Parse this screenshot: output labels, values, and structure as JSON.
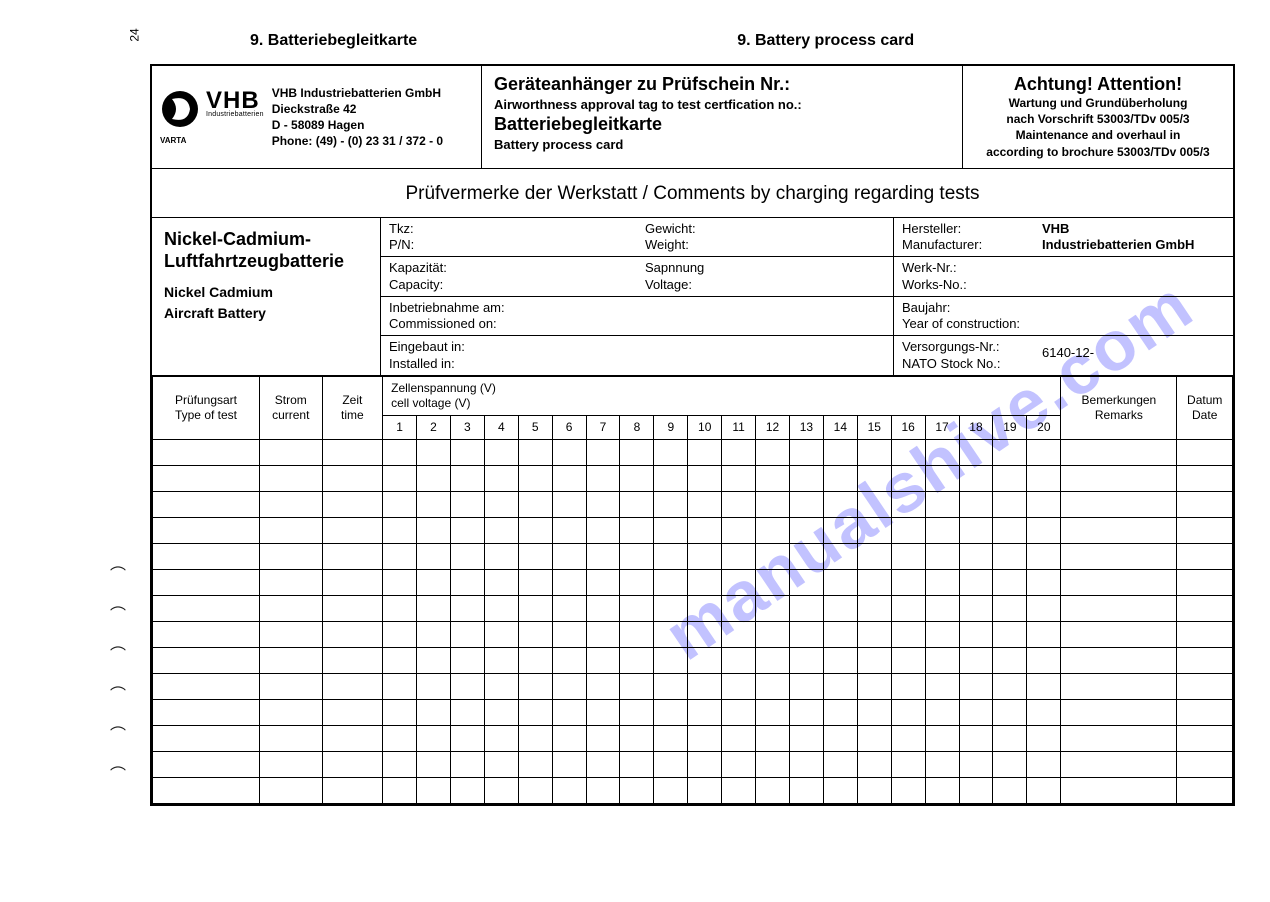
{
  "page_number": "24",
  "top_left_title": "9. Batteriebegleitkarte",
  "top_right_title": "9. Battery process card",
  "watermark": "manualshive.com",
  "header": {
    "logo_brand": "VHB",
    "logo_sub": "Industriebatterien",
    "varta": "VARTA",
    "company": "VHB Industriebatterien GmbH",
    "street": "Dieckstraße 42",
    "city": "D - 58089 Hagen",
    "phone": "Phone: (49) - (0) 23 31 / 372 - 0",
    "mid_l1": "Geräteanhänger zu Prüfschein Nr.:",
    "mid_l2": "Airworthness approval tag to test certfication no.:",
    "mid_l3": "Batteriebegleitkarte",
    "mid_l4": "Battery process card",
    "attention": "Achtung! Attention!",
    "att_l1": "Wartung und Grundüberholung",
    "att_l2": "nach Vorschrift 53003/TDv 005/3",
    "att_l3": "Maintenance and overhaul in",
    "att_l4": "according to brochure 53003/TDv 005/3"
  },
  "comments_title": "Prüfvermerke der Werkstatt / Comments by charging regarding tests",
  "meta": {
    "left_big_l1": "Nickel-Cadmium-",
    "left_big_l2": "Luftfahrtzeugbatterie",
    "left_sm_l1": "Nickel Cadmium",
    "left_sm_l2": "Aircraft Battery",
    "tkz": "Tkz:",
    "pn": "P/N:",
    "gewicht": "Gewicht:",
    "weight": "Weight:",
    "kapazitat": "Kapazität:",
    "capacity": "Capacity:",
    "spannung": "Sapnnung",
    "voltage": "Voltage:",
    "inbetrieb": "Inbetriebnahme am:",
    "commissioned": "Commissioned on:",
    "eingebaut": "Eingebaut in:",
    "installed": "Installed in:",
    "hersteller": "Hersteller:",
    "manufacturer": "Manufacturer:",
    "hersteller_val_l1": "VHB",
    "hersteller_val_l2": "Industriebatterien GmbH",
    "werknr": "Werk-Nr.:",
    "worksno": "Works-No.:",
    "baujahr": "Baujahr:",
    "yoc": "Year of construction:",
    "versorg": "Versorgungs-Nr.:",
    "nato": "NATO Stock No.:",
    "nato_val": "6140-12-"
  },
  "table": {
    "col_type_l1": "Prüfungsart",
    "col_type_l2": "Type of test",
    "col_cur_l1": "Strom",
    "col_cur_l2": "current",
    "col_time_l1": "Zeit",
    "col_time_l2": "time",
    "cell_voltage_l1": "Zellenspannung (V)",
    "cell_voltage_l2": "cell voltage (V)",
    "col_rem_l1": "Bemerkungen",
    "col_rem_l2": "Remarks",
    "col_date_l1": "Datum",
    "col_date_l2": "Date",
    "cell_nums": [
      "1",
      "2",
      "3",
      "4",
      "5",
      "6",
      "7",
      "8",
      "9",
      "10",
      "11",
      "12",
      "13",
      "14",
      "15",
      "16",
      "17",
      "18",
      "19",
      "20"
    ],
    "blank_rows": 14
  },
  "colors": {
    "text": "#000000",
    "border": "#000000",
    "background": "#ffffff",
    "watermark": "rgba(80,80,255,0.35)"
  }
}
